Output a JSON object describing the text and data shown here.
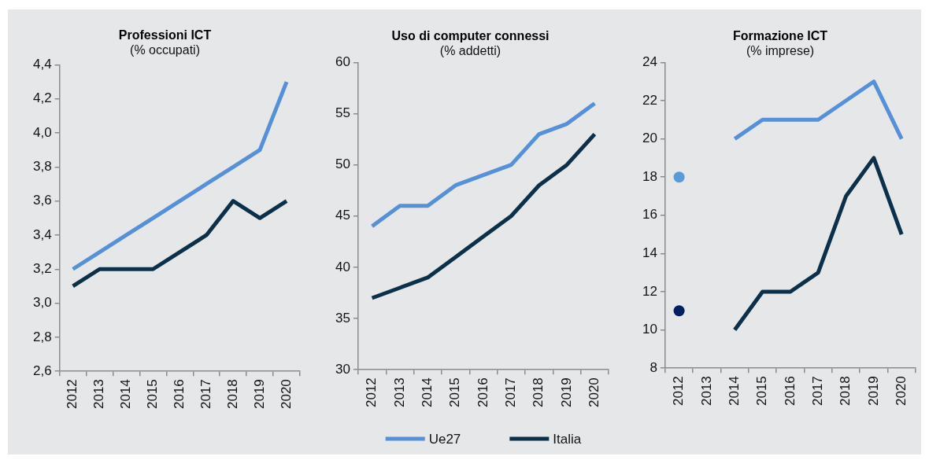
{
  "chart_data": [
    {
      "type": "line",
      "title": "Professioni ICT",
      "subtitle": "(% occupati)",
      "categories": [
        "2012",
        "2013",
        "2014",
        "2015",
        "2016",
        "2017",
        "2018",
        "2019",
        "2020"
      ],
      "series": [
        {
          "color": "#5590d8",
          "values": [
            3.2,
            3.3,
            3.4,
            3.5,
            3.6,
            3.7,
            3.8,
            3.9,
            4.3
          ]
        },
        {
          "color": "#0c3049",
          "values": [
            3.1,
            3.2,
            3.2,
            3.2,
            3.3,
            3.4,
            3.6,
            3.5,
            3.6
          ]
        }
      ],
      "ylim": [
        2.6,
        4.4
      ],
      "yticks": [
        {
          "value": 2.6,
          "label": "2,6"
        },
        {
          "value": 2.8,
          "label": "2,8"
        },
        {
          "value": 3.0,
          "label": "3,0"
        },
        {
          "value": 3.2,
          "label": "3,2"
        },
        {
          "value": 3.4,
          "label": "3,4"
        },
        {
          "value": 3.6,
          "label": "3,6"
        },
        {
          "value": 3.8,
          "label": "3,8"
        },
        {
          "value": 4.0,
          "label": "4,0"
        },
        {
          "value": 4.2,
          "label": "4,2"
        },
        {
          "value": 4.4,
          "label": "4,4"
        }
      ],
      "grid": false,
      "marker": "none"
    },
    {
      "type": "line",
      "title": "Uso di computer connessi",
      "subtitle": "(% addetti)",
      "categories": [
        "2012",
        "2013",
        "2014",
        "2015",
        "2016",
        "2017",
        "2018",
        "2019",
        "2020"
      ],
      "series": [
        {
          "name": "Ue27",
          "color": "#5590d8",
          "values": [
            44,
            46,
            46,
            48,
            49,
            50,
            53,
            54,
            56
          ]
        },
        {
          "name": "Italia",
          "color": "#0c3049",
          "values": [
            37,
            38,
            39,
            41,
            43,
            45,
            48,
            50,
            53
          ]
        }
      ],
      "ylim": [
        30,
        60
      ],
      "yticks": [
        30,
        35,
        40,
        45,
        50,
        55,
        60
      ],
      "grid": false,
      "marker": "none",
      "legend": "bottom"
    },
    {
      "type": "line",
      "title": "Formazione ICT",
      "subtitle": "(% imprese)",
      "categories": [
        "2012",
        "2013",
        "2014",
        "2015",
        "2016",
        "2017",
        "2018",
        "2019",
        "2020"
      ],
      "series": [
        {
          "color": "#5590d8",
          "values": [
            null,
            null,
            20,
            21,
            21,
            21,
            22,
            23,
            20
          ]
        },
        {
          "color": "#0c3049",
          "values": [
            null,
            null,
            10,
            12,
            12,
            13,
            17,
            19,
            15
          ]
        },
        {
          "type": "scatter",
          "color": "#5b9bd5",
          "marker": "circle",
          "values": [
            18,
            null,
            null,
            null,
            null,
            null,
            null,
            null,
            null
          ]
        },
        {
          "type": "scatter",
          "color": "#002060",
          "marker": "circle",
          "values": [
            11,
            null,
            null,
            null,
            null,
            null,
            null,
            null,
            null
          ]
        }
      ],
      "ylim": [
        8,
        24
      ],
      "yticks": [
        8,
        10,
        12,
        14,
        16,
        18,
        20,
        22,
        24
      ],
      "grid": false,
      "marker": "none"
    }
  ]
}
